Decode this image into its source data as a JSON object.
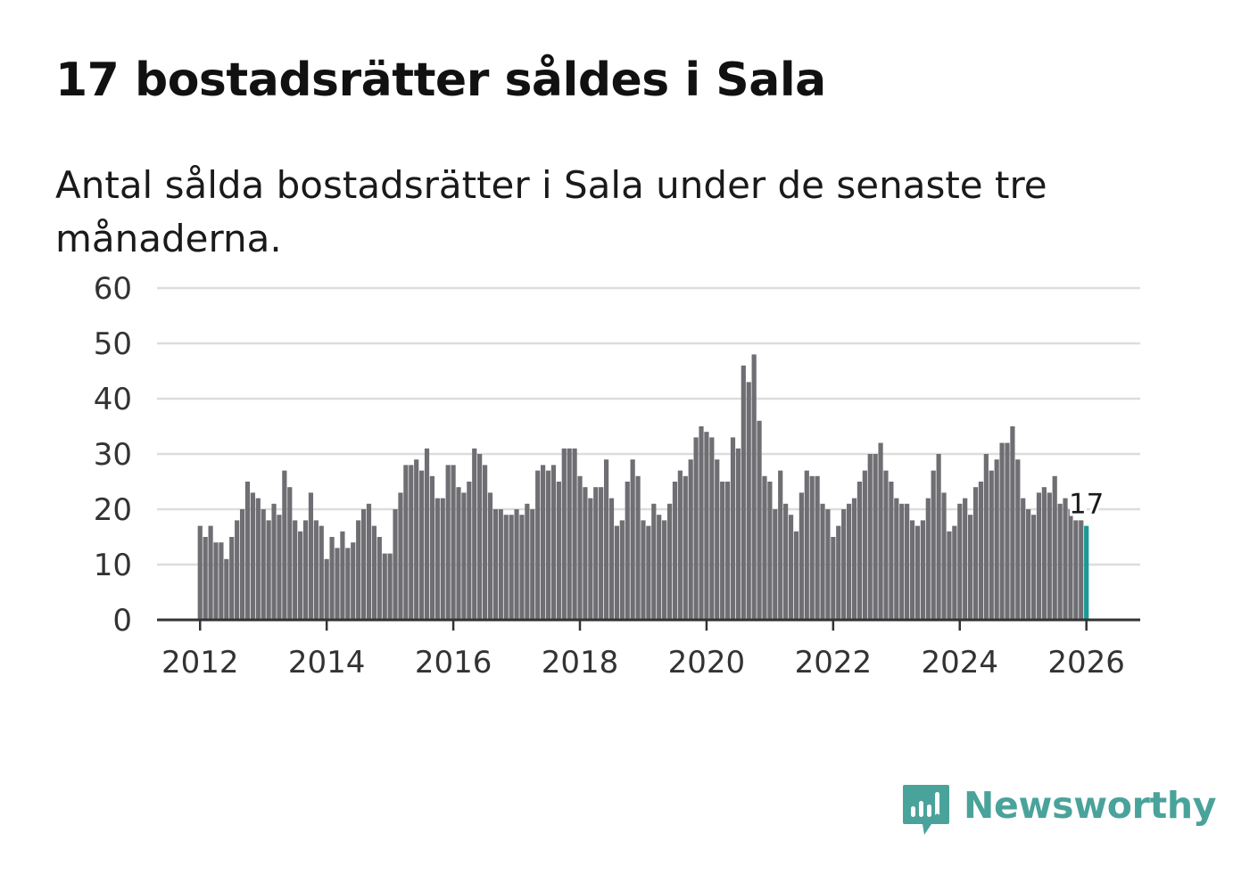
{
  "title": "17 bostadsrätter såldes i Sala",
  "subtitle": "Antal sålda bostadsrätter i Sala under de senaste tre månaderna.",
  "brand": {
    "name": "Newsworthy",
    "color": "#4aa39b",
    "icon": "newsworthy-logo-icon"
  },
  "colors": {
    "bar": "#6e6e73",
    "highlight": "#1a9a93",
    "grid": "#dddddd",
    "axis": "#333333"
  },
  "chart_data": {
    "type": "bar",
    "title": "17 bostadsrätter såldes i Sala",
    "xlabel": "",
    "ylabel": "",
    "ylim": [
      0,
      60
    ],
    "yticks": [
      "0",
      "10",
      "20",
      "30",
      "40",
      "50",
      "60"
    ],
    "x_start": "2012-01",
    "x_end": "2026-01",
    "xlim": [
      2011.32,
      2026.85
    ],
    "xticks": [
      "2012",
      "2014",
      "2016",
      "2018",
      "2020",
      "2022",
      "2024",
      "2026"
    ],
    "grid": true,
    "values": [
      17,
      15,
      17,
      14,
      14,
      11,
      15,
      18,
      20,
      25,
      23,
      22,
      20,
      18,
      21,
      19,
      27,
      24,
      18,
      16,
      18,
      23,
      18,
      17,
      11,
      15,
      13,
      16,
      13,
      14,
      18,
      20,
      21,
      17,
      15,
      12,
      12,
      20,
      23,
      28,
      28,
      29,
      27,
      31,
      26,
      22,
      22,
      28,
      28,
      24,
      23,
      25,
      31,
      30,
      28,
      23,
      20,
      20,
      19,
      19,
      20,
      19,
      21,
      20,
      27,
      28,
      27,
      28,
      25,
      31,
      31,
      31,
      26,
      24,
      22,
      24,
      24,
      29,
      22,
      17,
      18,
      25,
      29,
      26,
      18,
      17,
      21,
      19,
      18,
      21,
      25,
      27,
      26,
      29,
      33,
      35,
      34,
      33,
      29,
      25,
      25,
      33,
      31,
      46,
      43,
      48,
      36,
      26,
      25,
      20,
      27,
      21,
      19,
      16,
      23,
      27,
      26,
      26,
      21,
      20,
      15,
      17,
      20,
      21,
      22,
      25,
      27,
      30,
      30,
      32,
      27,
      25,
      22,
      21,
      21,
      18,
      17,
      18,
      22,
      27,
      30,
      23,
      16,
      17,
      21,
      22,
      19,
      24,
      25,
      30,
      27,
      29,
      32,
      32,
      35,
      29,
      22,
      20,
      19,
      23,
      24,
      23,
      26,
      21,
      22,
      20,
      18,
      18,
      17
    ],
    "highlight_label": "17"
  }
}
